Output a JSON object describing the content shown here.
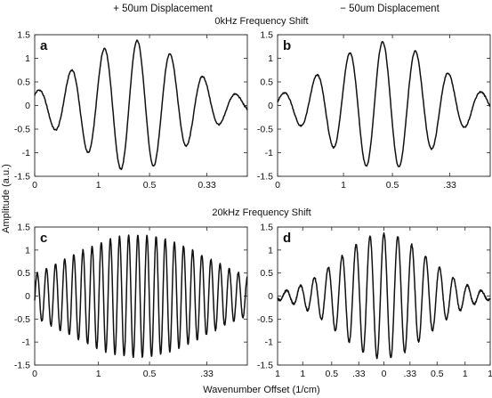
{
  "figure": {
    "col_titles": [
      "+ 50um Displacement",
      "− 50um Displacement"
    ],
    "row_titles": [
      "0kHz Frequency Shift",
      "20kHz Frequency Shift"
    ],
    "ylabel": "Amplitude (a.u.)",
    "xlabel": "Wavenumber Offset (1/cm)"
  },
  "chart_data": [
    {
      "id": "a",
      "type": "line",
      "panel_label": "a",
      "ylim": [
        -1.5,
        1.5
      ],
      "yticks": [
        "1.5",
        "1",
        "0.5",
        "0",
        "-0.5",
        "-1",
        "-1.5"
      ],
      "xlim": [
        0,
        10
      ],
      "xticks": [
        {
          "x": 0,
          "label": "0"
        },
        {
          "x": 3,
          "label": "1"
        },
        {
          "x": 5.4,
          "label": "0.5"
        },
        {
          "x": 8.1,
          "label": "0.33"
        }
      ],
      "signal": {
        "center": 4.6,
        "period": 1.55,
        "width": 2.6,
        "amplitude": 1.38,
        "phase": -0.9,
        "samples": 420,
        "noise": 0.015
      },
      "x": [
        0,
        0.45,
        1.05,
        1.55,
        2.15,
        2.65,
        3.05,
        3.45,
        3.95,
        4.4,
        4.85,
        5.25,
        5.65,
        6.1,
        6.45,
        6.9,
        7.4,
        7.9,
        8.3,
        8.8,
        9.3,
        10
      ],
      "y": [
        0.18,
        -0.35,
        0.55,
        -0.62,
        0.95,
        -1.1,
        1.3,
        -1.3,
        1.05,
        1.38,
        -0.75,
        -1.4,
        0.65,
        1.32,
        -0.95,
        -0.8,
        0.2,
        0.45,
        0.05,
        -0.3,
        0.45,
        0.0
      ]
    },
    {
      "id": "b",
      "type": "line",
      "panel_label": "b",
      "ylim": [
        -1.5,
        1.5
      ],
      "yticks": [
        "1.5",
        "1",
        "0.5",
        "0",
        "-0.5",
        "-1",
        "-1.5"
      ],
      "xlim": [
        0,
        10
      ],
      "xticks": [
        {
          "x": 0,
          "label": "0"
        },
        {
          "x": 3.1,
          "label": "1"
        },
        {
          "x": 5.4,
          "label": "0.5"
        },
        {
          "x": 8.1,
          "label": ".33"
        }
      ],
      "signal": {
        "center": 5.0,
        "period": 1.55,
        "width": 2.6,
        "amplitude": 1.35,
        "phase": 0.25,
        "samples": 420,
        "noise": 0.015
      },
      "x": [
        0,
        0.55,
        1.15,
        1.65,
        2.3,
        2.8,
        3.3,
        3.8,
        4.25,
        4.75,
        5.25,
        5.65,
        6.1,
        6.6,
        7.05,
        7.55,
        8.1,
        8.6,
        9.05,
        10
      ],
      "y": [
        0.0,
        -0.2,
        0.45,
        -0.6,
        0.75,
        -1.25,
        1.05,
        -1.4,
        1.35,
        -1.3,
        1.1,
        -1.15,
        1.25,
        -0.5,
        -0.65,
        0.4,
        0.85,
        -0.1,
        0.15,
        -0.05
      ]
    },
    {
      "id": "c",
      "type": "line",
      "panel_label": "c",
      "ylim": [
        -1.5,
        1.5
      ],
      "yticks": [
        "1.5",
        "1",
        "0.5",
        "0",
        "-0.5",
        "-1",
        "-1.5"
      ],
      "xlim": [
        0,
        10
      ],
      "xticks": [
        {
          "x": 0,
          "label": "0"
        },
        {
          "x": 3,
          "label": "1"
        },
        {
          "x": 5.4,
          "label": "0.5"
        },
        {
          "x": 8.1,
          "label": ".33"
        }
      ],
      "signal": {
        "center": 4.85,
        "period": 0.43,
        "width": 3.4,
        "amplitude": 1.33,
        "phase": 0.0,
        "samples": 900,
        "noise": 0.02
      },
      "envelope_peak": 1.33,
      "cycles_approx": 23
    },
    {
      "id": "d",
      "type": "line",
      "panel_label": "d",
      "ylim": [
        -1.5,
        1.5
      ],
      "yticks": [
        "1.5",
        "1",
        "0.5",
        "0",
        "-0.5",
        "-1",
        "-1.5"
      ],
      "xlim": [
        -5.5,
        5.5
      ],
      "xticks": [
        {
          "x": -5.5,
          "label": "1"
        },
        {
          "x": -4.2,
          "label": "1"
        },
        {
          "x": -2.7,
          "label": "0.5"
        },
        {
          "x": -1.3,
          "label": ".33"
        },
        {
          "x": 0,
          "label": "0"
        },
        {
          "x": 1.35,
          "label": ".33"
        },
        {
          "x": 2.75,
          "label": "0.5"
        },
        {
          "x": 4.2,
          "label": "1"
        },
        {
          "x": 5.5,
          "label": "1"
        }
      ],
      "signal": {
        "center": 0.0,
        "period": 0.72,
        "width": 2.3,
        "amplitude": 1.36,
        "phase": 0.0,
        "samples": 900,
        "noise": 0.02
      },
      "envelope_peak": 1.36,
      "cycles_approx": 15
    }
  ]
}
